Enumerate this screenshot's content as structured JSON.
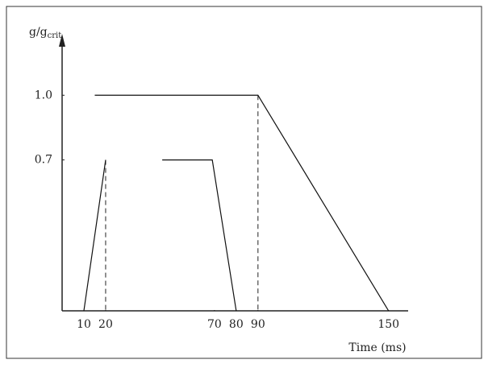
{
  "chart_data": {
    "type": "line",
    "x_label": "Time (ms)",
    "y_label": "g/g",
    "y_label_subscript": "crit",
    "xlim": [
      0,
      159
    ],
    "ylim": [
      0,
      1.27
    ],
    "xticks": [
      10,
      20,
      70,
      80,
      90,
      150
    ],
    "yticks": [
      0.7,
      {
        "value": 1,
        "label": "1.0"
      }
    ],
    "color": "#111111",
    "series": [
      {
        "x": [
          10,
          20
        ],
        "values": [
          0,
          0.7
        ]
      },
      {
        "x": [
          46,
          69,
          80
        ],
        "values": [
          0.7,
          0.7,
          0
        ]
      },
      {
        "x": [
          15,
          90,
          150
        ],
        "values": [
          1,
          1,
          0
        ]
      }
    ],
    "droplines": [
      {
        "x": 20,
        "y": 0.7
      },
      {
        "x": 90,
        "y": 1
      }
    ]
  }
}
